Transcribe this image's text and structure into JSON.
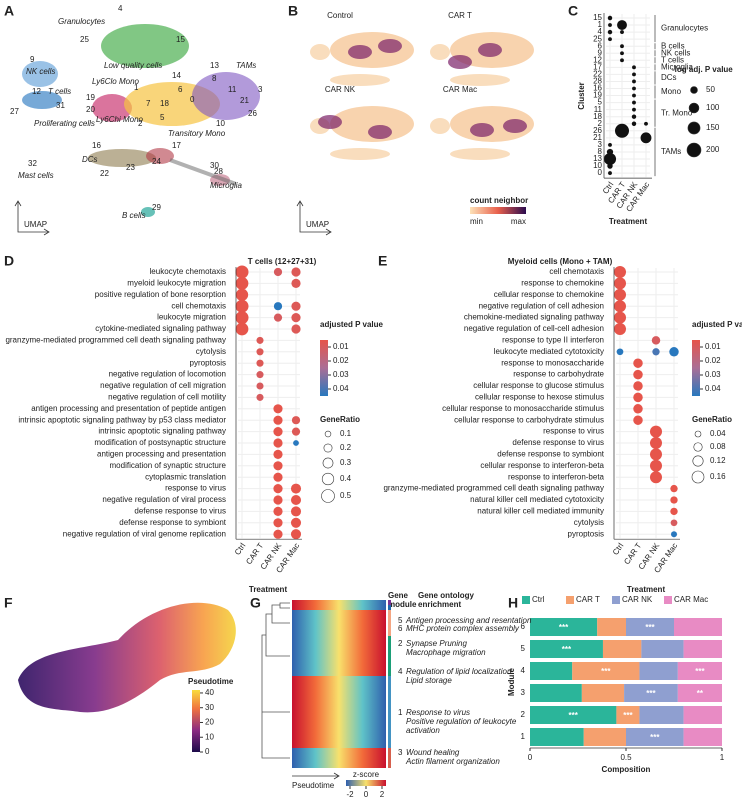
{
  "panel_labels": [
    "A",
    "B",
    "C",
    "D",
    "E",
    "F",
    "G",
    "H"
  ],
  "umap_a": {
    "axis_label": "UMAP",
    "labels": [
      "Granulocytes",
      "4",
      "25",
      "15",
      "9",
      "NK cells",
      "Low quality cells",
      "14",
      "1",
      "13",
      "TAMs",
      "8",
      "11",
      "21",
      "3",
      "6",
      "Ly6Clo Mono",
      "19",
      "12",
      "T cells",
      "31",
      "27",
      "Proliferating cells",
      "20",
      "Ly6Chi Mono",
      "7",
      "18",
      "0",
      "2",
      "5",
      "Transitory Mono",
      "16",
      "26",
      "10",
      "28",
      "Microglia",
      "32",
      "Mast cells",
      "DCs",
      "22",
      "23",
      "24",
      "17",
      "30",
      "29",
      "B cells"
    ]
  },
  "umap_b": {
    "axis_label": "UMAP",
    "conditions": [
      "Control",
      "CAR T",
      "CAR NK",
      "CAR Mac"
    ],
    "colorbar_title": "count neighbor",
    "colorbar_min": "min",
    "colorbar_max": "max"
  },
  "chart_data": [
    {
      "type": "dot",
      "xlabel": "Treatment",
      "ylabel": "Cluster",
      "categories": [
        "15",
        "1",
        "4",
        "25",
        "6",
        "9",
        "12",
        "17",
        "22",
        "28",
        "16",
        "19",
        "5",
        "11",
        "18",
        "2",
        "26",
        "21",
        "3",
        "8",
        "13",
        "10",
        "0"
      ],
      "groups": [
        "Granulocytes",
        "B cells",
        "NK cells",
        "T cells",
        "Microglia",
        "DCs",
        "Mono",
        "Tr. Mono",
        "TAMs"
      ],
      "series": [
        {
          "name": "Ctrl",
          "values": [
            20,
            15,
            20,
            15,
            null,
            null,
            null,
            null,
            null,
            null,
            null,
            null,
            null,
            null,
            null,
            null,
            null,
            null,
            15,
            40,
            150,
            30,
            15
          ]
        },
        {
          "name": "CAR T",
          "values": [
            null,
            100,
            15,
            null,
            15,
            15,
            15,
            null,
            null,
            null,
            null,
            null,
            null,
            null,
            null,
            null,
            200,
            null,
            null,
            null,
            null,
            null,
            null
          ]
        },
        {
          "name": "CAR NK",
          "values": [
            null,
            null,
            null,
            null,
            null,
            null,
            null,
            15,
            15,
            15,
            15,
            15,
            15,
            15,
            20,
            20,
            null,
            null,
            null,
            null,
            null,
            null,
            null
          ]
        },
        {
          "name": "CAR Mac",
          "values": [
            null,
            null,
            null,
            null,
            null,
            null,
            null,
            null,
            null,
            null,
            null,
            null,
            null,
            null,
            null,
            15,
            null,
            120,
            null,
            null,
            null,
            null,
            null
          ]
        }
      ],
      "size_title": "-log adj. P value",
      "size_lim": [
        0,
        200
      ],
      "size_ticks": [
        50,
        100,
        150,
        200
      ]
    },
    {
      "type": "dot",
      "title": "T cells (12+27+31)",
      "xlabel": "Treatment",
      "categories": [
        "leukocyte chemotaxis",
        "myeloid leukocyte migration",
        "positive regulation of bone resorption",
        "cell chemotaxis",
        "leukocyte migration",
        "cytokine-mediated signaling pathway",
        "granzyme-mediated programmed cell death signaling pathway",
        "cytolysis",
        "pyroptosis",
        "negative regulation of locomotion",
        "negative regulation of cell migration",
        "negative regulation of cell motility",
        "antigen processing and presentation of peptide antigen",
        "intrinsic apoptotic signaling pathway by p53 class mediator",
        "intrinsic apoptotic signaling pathway",
        "modification of postsynaptic structure",
        "antigen processing and presentation",
        "modification of synaptic structure",
        "cytoplasmic translation",
        "response to virus",
        "negative regulation of viral process",
        "defense response to virus",
        "defense response to symbiont",
        "negative regulation of viral genome replication"
      ],
      "series": [
        {
          "name": "Ctrl",
          "values": [
            0.5,
            0.48,
            0.45,
            0.5,
            0.5,
            0.48,
            null,
            null,
            null,
            null,
            null,
            null,
            null,
            null,
            null,
            null,
            null,
            null,
            null,
            null,
            null,
            null,
            null,
            null
          ],
          "pvalues": [
            0.005,
            0.005,
            0.005,
            0.005,
            0.005,
            0.005,
            null,
            null,
            null,
            null,
            null,
            null,
            null,
            null,
            null,
            null,
            null,
            null,
            null,
            null,
            null,
            null,
            null,
            null
          ]
        },
        {
          "name": "CAR T",
          "values": [
            null,
            null,
            null,
            null,
            null,
            null,
            0.15,
            0.15,
            0.15,
            0.15,
            0.15,
            0.15,
            null,
            null,
            null,
            null,
            null,
            null,
            null,
            null,
            null,
            null,
            null,
            null
          ],
          "pvalues": [
            null,
            null,
            null,
            null,
            null,
            null,
            0.008,
            0.008,
            0.008,
            0.01,
            0.01,
            0.01,
            null,
            null,
            null,
            null,
            null,
            null,
            null,
            null,
            null,
            null,
            null,
            null
          ]
        },
        {
          "name": "CAR NK",
          "values": [
            0.2,
            null,
            null,
            0.2,
            0.2,
            null,
            null,
            null,
            null,
            null,
            null,
            null,
            0.25,
            0.25,
            0.25,
            0.25,
            0.25,
            0.25,
            0.25,
            0.25,
            0.25,
            0.25,
            0.25,
            0.25
          ],
          "pvalues": [
            0.01,
            null,
            null,
            0.045,
            0.01,
            null,
            null,
            null,
            null,
            null,
            null,
            null,
            0.005,
            0.005,
            0.005,
            0.005,
            0.005,
            0.005,
            0.005,
            0.005,
            0.005,
            0.005,
            0.005,
            0.005
          ]
        },
        {
          "name": "CAR Mac",
          "values": [
            0.25,
            0.25,
            null,
            0.25,
            0.25,
            0.25,
            null,
            null,
            null,
            null,
            null,
            null,
            null,
            0.2,
            0.2,
            0.1,
            null,
            null,
            null,
            0.3,
            0.3,
            0.3,
            0.3,
            0.3
          ],
          "pvalues": [
            0.008,
            0.008,
            null,
            0.008,
            0.008,
            0.008,
            null,
            null,
            null,
            null,
            null,
            null,
            null,
            0.008,
            0.008,
            0.045,
            null,
            null,
            null,
            0.005,
            0.005,
            0.005,
            0.005,
            0.005
          ]
        }
      ],
      "color_title": "adjusted P value",
      "clim": [
        0.005,
        0.045
      ],
      "cticks": [
        0.01,
        0.02,
        0.03,
        0.04
      ],
      "size_title": "GeneRatio",
      "size_lim": [
        0,
        0.5
      ],
      "size_ticks": [
        0.1,
        0.2,
        0.3,
        0.4,
        0.5
      ]
    },
    {
      "type": "dot",
      "title": "Myeloid cells (Mono + TAM)",
      "xlabel": "Treatment",
      "categories": [
        "cell chemotaxis",
        "response to chemokine",
        "cellular response to chemokine",
        "negative regulation of cell adhesion",
        "chemokine-mediated signaling pathway",
        "negative regulation of cell-cell adhesion",
        "response to type II interferon",
        "leukocyte mediated cytotoxicity",
        "response to monosaccharide",
        "response to carbohydrate",
        "cellular response to glucose stimulus",
        "cellular response to hexose stimulus",
        "cellular response to monosaccharide stimulus",
        "cellular response to carbohydrate stimulus",
        "response to virus",
        "defense response to virus",
        "defense response to symbiont",
        "cellular response to interferon-beta",
        "response to interferon-beta",
        "granzyme-mediated programmed cell death signaling pathway",
        "natural killer cell mediated cytotoxicity",
        "natural killer cell mediated immunity",
        "cytolysis",
        "pyroptosis"
      ],
      "series": [
        {
          "name": "Ctrl",
          "values": [
            0.16,
            0.16,
            0.16,
            0.16,
            0.16,
            0.16,
            null,
            0.05,
            null,
            null,
            null,
            null,
            null,
            null,
            null,
            null,
            null,
            null,
            null,
            null,
            null,
            null,
            null,
            null
          ],
          "pvalues": [
            0.005,
            0.005,
            0.005,
            0.005,
            0.005,
            0.005,
            null,
            0.045,
            null,
            null,
            null,
            null,
            null,
            null,
            null,
            null,
            null,
            null,
            null,
            null,
            null,
            null,
            null,
            null
          ]
        },
        {
          "name": "CAR T",
          "values": [
            null,
            null,
            null,
            null,
            null,
            null,
            null,
            null,
            0.1,
            0.1,
            0.1,
            0.1,
            0.1,
            0.1,
            null,
            null,
            null,
            null,
            null,
            null,
            null,
            null,
            null,
            null
          ],
          "pvalues": [
            null,
            null,
            null,
            null,
            null,
            null,
            null,
            null,
            0.005,
            0.005,
            0.005,
            0.005,
            0.005,
            0.005,
            null,
            null,
            null,
            null,
            null,
            null,
            null,
            null,
            null,
            null
          ]
        },
        {
          "name": "CAR NK",
          "values": [
            null,
            null,
            null,
            null,
            null,
            null,
            0.08,
            0.06,
            null,
            null,
            null,
            null,
            null,
            null,
            0.16,
            0.16,
            0.16,
            0.16,
            0.16,
            null,
            null,
            null,
            null,
            null
          ],
          "pvalues": [
            null,
            null,
            null,
            null,
            null,
            null,
            0.01,
            0.04,
            null,
            null,
            null,
            null,
            null,
            null,
            0.005,
            0.005,
            0.005,
            0.005,
            0.005,
            null,
            null,
            null,
            null,
            null
          ]
        },
        {
          "name": "CAR Mac",
          "values": [
            null,
            null,
            null,
            null,
            null,
            null,
            null,
            0.1,
            null,
            null,
            null,
            null,
            null,
            null,
            null,
            null,
            null,
            null,
            null,
            0.06,
            0.06,
            0.06,
            0.05,
            0.04
          ],
          "pvalues": [
            null,
            null,
            null,
            null,
            null,
            null,
            null,
            0.045,
            null,
            null,
            null,
            null,
            null,
            null,
            null,
            null,
            null,
            null,
            null,
            0.005,
            0.005,
            0.005,
            0.01,
            0.045
          ]
        }
      ],
      "color_title": "adjusted P value",
      "clim": [
        0.005,
        0.045
      ],
      "cticks": [
        0.01,
        0.02,
        0.03,
        0.04
      ],
      "size_title": "GeneRatio",
      "size_lim": [
        0,
        0.16
      ],
      "size_ticks": [
        0.04,
        0.08,
        0.12,
        0.16
      ]
    },
    {
      "type": "stacked_bar",
      "xlabel": "Composition",
      "ylabel": "Module",
      "categories": [
        "6",
        "5",
        "4",
        "3",
        "2",
        "1"
      ],
      "series": [
        {
          "name": "Ctrl",
          "color": "#2bb59a",
          "values": [
            0.35,
            0.38,
            0.22,
            0.27,
            0.45,
            0.28
          ],
          "labels": [
            "***",
            "***",
            null,
            null,
            "***",
            null
          ]
        },
        {
          "name": "CAR T",
          "color": "#f5a06e",
          "values": [
            0.15,
            0.2,
            0.35,
            0.22,
            0.12,
            0.22
          ],
          "labels": [
            null,
            null,
            "***",
            null,
            "***",
            null
          ]
        },
        {
          "name": "CAR NK",
          "color": "#8f9fd0",
          "values": [
            0.25,
            0.22,
            0.2,
            0.28,
            0.23,
            0.3
          ],
          "labels": [
            "***",
            null,
            null,
            "***",
            null,
            "***"
          ]
        },
        {
          "name": "CAR Mac",
          "color": "#e88bc4",
          "values": [
            0.25,
            0.2,
            0.23,
            0.23,
            0.2,
            0.2
          ],
          "labels": [
            null,
            null,
            "***",
            "**",
            null,
            null
          ]
        }
      ],
      "xlim": [
        0,
        1
      ],
      "xticks": [
        0,
        0.5,
        1
      ]
    }
  ],
  "pseudotime_f": {
    "title": "Pseudotime",
    "clim": [
      0,
      42
    ],
    "ticks": [
      0,
      10,
      20,
      30,
      40
    ]
  },
  "heatmap_g": {
    "gene_module_header": [
      "Gene",
      "module"
    ],
    "go_header": [
      "Gene ontology",
      "enrichment"
    ],
    "modules": [
      {
        "id": "5",
        "terms": [
          "Antigen processing and resentation"
        ]
      },
      {
        "id": "6",
        "terms": [
          "MHC protein complex assembly"
        ]
      },
      {
        "id": "2",
        "terms": [
          "Synapse Pruning",
          "Macrophage migration"
        ]
      },
      {
        "id": "4",
        "terms": [
          "Regulation of lipid localization",
          "Lipid storage"
        ]
      },
      {
        "id": "1",
        "terms": [
          "Response to virus",
          "Positive regulation of leukocyte",
          "activation"
        ]
      },
      {
        "id": "3",
        "terms": [
          "Wound healing",
          "Actin filament organization"
        ]
      }
    ],
    "xlabel": "Pseudotime",
    "colorbar_title": "z-score",
    "clim": [
      -2.5,
      2.5
    ],
    "ticks": [
      -2,
      0,
      2
    ]
  }
}
